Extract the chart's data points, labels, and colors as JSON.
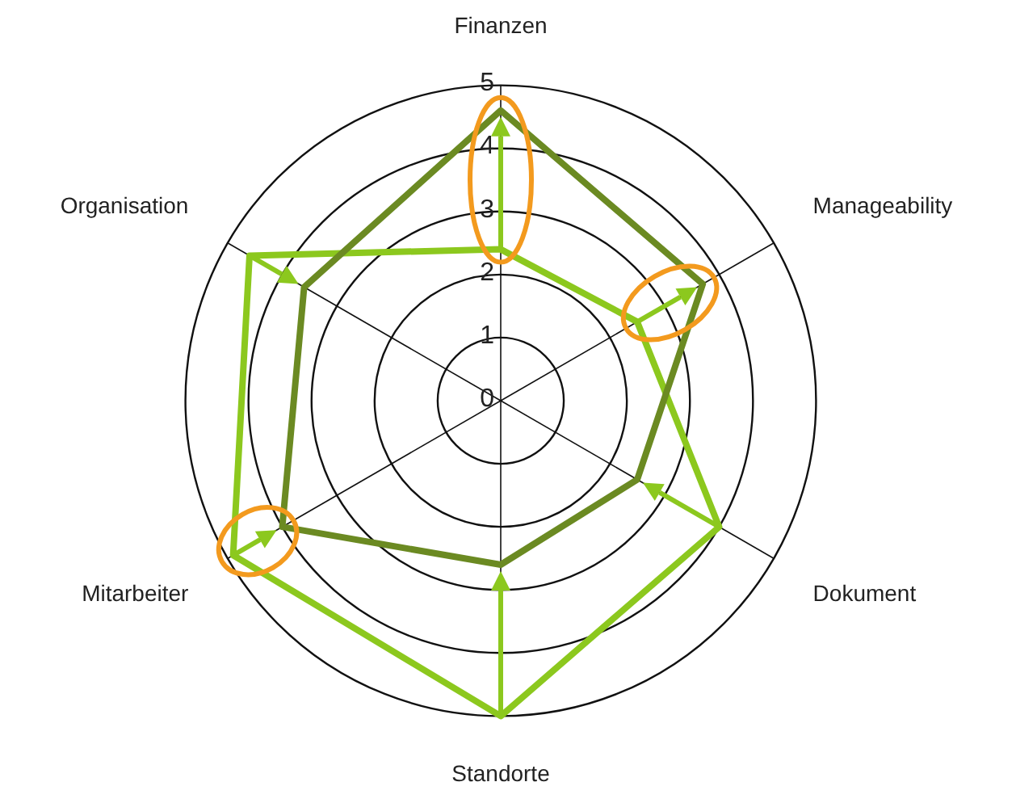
{
  "chart_data": {
    "type": "radar",
    "categories": [
      "Finanzen",
      "Manageability",
      "Dokument",
      "Standorte",
      "Mitarbeiter",
      "Organisation"
    ],
    "series": [
      {
        "color": "#6b8a22",
        "values": [
          4.6,
          3.7,
          2.5,
          2.6,
          4.0,
          3.6
        ]
      },
      {
        "color": "#8cc81e",
        "values": [
          2.4,
          2.5,
          4.0,
          5.0,
          4.9,
          4.6
        ]
      }
    ],
    "ylim": [
      0,
      5
    ],
    "yticks": [
      0,
      1,
      2,
      3,
      4,
      5
    ],
    "grid": true,
    "legend": false
  }
}
